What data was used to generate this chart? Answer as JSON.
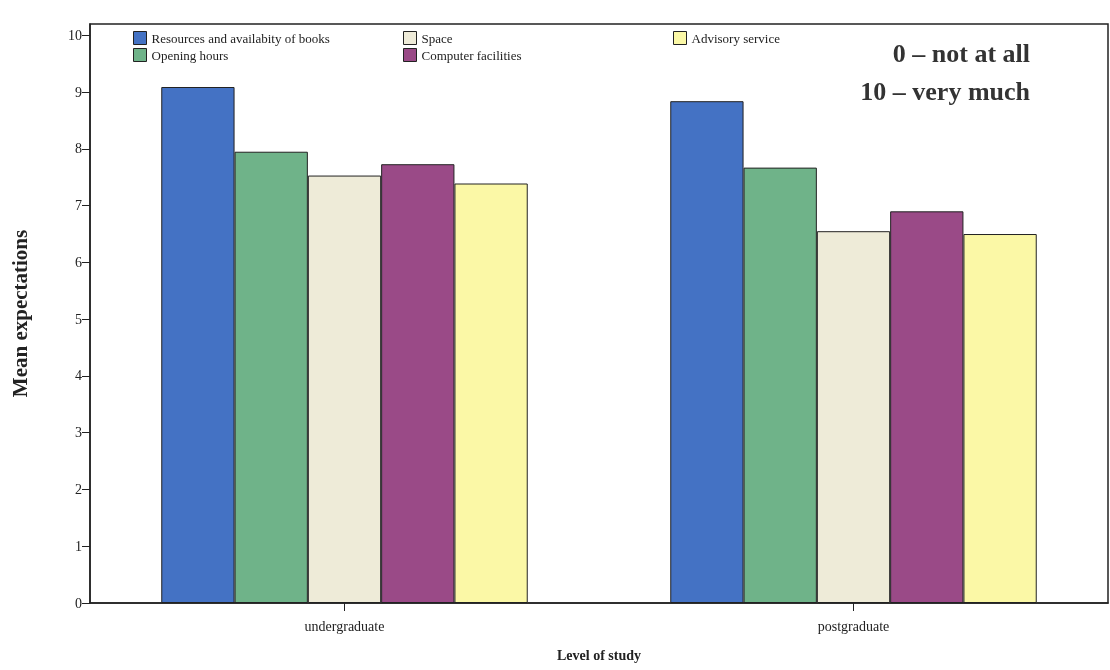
{
  "chart_data": {
    "type": "bar",
    "xlabel": "Level of study",
    "ylabel": "Mean expectations",
    "categories": [
      "undergraduate",
      "postgraduate"
    ],
    "series": [
      {
        "name": "Resources and availabity of books",
        "color": "#4472c4",
        "values": [
          9.09,
          8.84
        ]
      },
      {
        "name": "Opening hours",
        "color": "#6fb389",
        "values": [
          7.95,
          7.67
        ]
      },
      {
        "name": "Space",
        "color": "#eeebd8",
        "values": [
          7.53,
          6.55
        ]
      },
      {
        "name": "Computer facilities",
        "color": "#9a4a87",
        "values": [
          7.73,
          6.9
        ]
      },
      {
        "name": "Advisory service",
        "color": "#fbf8a6",
        "values": [
          7.39,
          6.5
        ]
      }
    ],
    "ylim": [
      0,
      10.2
    ],
    "yticks": [
      0,
      1,
      2,
      3,
      4,
      5,
      6,
      7,
      8,
      9,
      10
    ],
    "grid": false,
    "legend": "top left",
    "annotations": [
      "0 – not at all",
      "10 – very much"
    ]
  }
}
